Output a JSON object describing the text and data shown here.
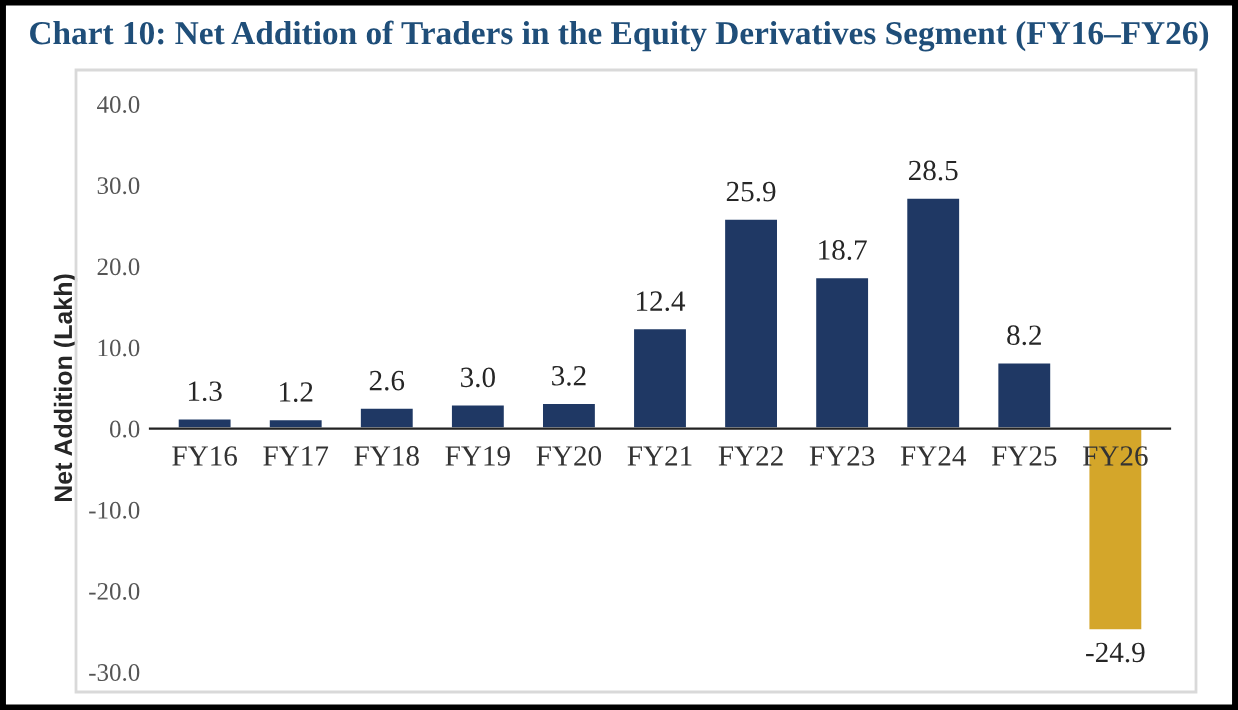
{
  "chart_data": {
    "type": "bar",
    "title": "Chart 10: Net Addition of Traders in the Equity Derivatives Segment (FY16–FY26)",
    "ylabel": "Net Addition (Lakh)",
    "categories": [
      "FY16",
      "FY17",
      "FY18",
      "FY19",
      "FY20",
      "FY21",
      "FY22",
      "FY23",
      "FY24",
      "FY25",
      "FY26"
    ],
    "values": [
      1.3,
      1.2,
      2.6,
      3.0,
      3.2,
      12.4,
      25.9,
      18.7,
      28.5,
      8.2,
      -24.9
    ],
    "colors": [
      "#1f3864",
      "#1f3864",
      "#1f3864",
      "#1f3864",
      "#1f3864",
      "#1f3864",
      "#1f3864",
      "#1f3864",
      "#1f3864",
      "#1f3864",
      "#d4a62a"
    ],
    "value_labels": [
      "1.3",
      "1.2",
      "2.6",
      "3.0",
      "3.2",
      "12.4",
      "25.9",
      "18.7",
      "28.5",
      "8.2",
      "-24.9"
    ],
    "ylim": [
      -30,
      40
    ],
    "yticks": [
      {
        "value": -30,
        "label": "-30.0"
      },
      {
        "value": -20,
        "label": "-20.0"
      },
      {
        "value": -10,
        "label": "-10.0"
      },
      {
        "value": 0,
        "label": "0.0"
      },
      {
        "value": 10,
        "label": "10.0"
      },
      {
        "value": 20,
        "label": "20.0"
      },
      {
        "value": 30,
        "label": "30.0"
      },
      {
        "value": 40,
        "label": "40.0"
      }
    ],
    "grid": false,
    "legend": false
  }
}
